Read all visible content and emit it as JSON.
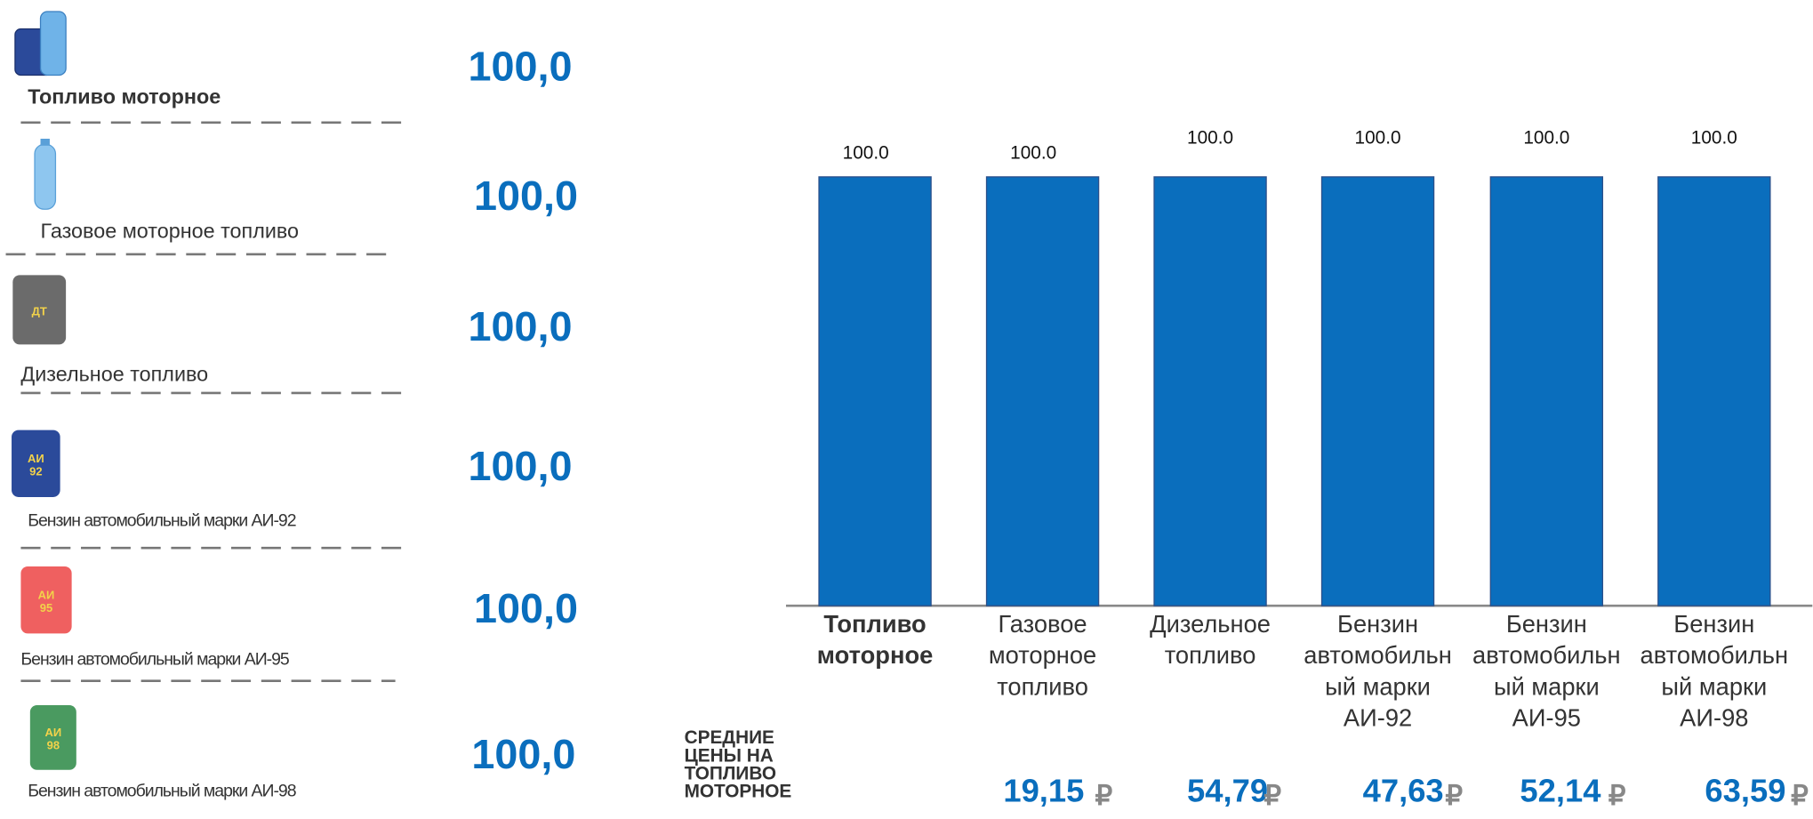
{
  "fuel_list": [
    {
      "label": "Топливо моторное",
      "value": "100,0"
    },
    {
      "label": "Газовое моторное топливо",
      "value": "100,0"
    },
    {
      "label": "Дизельное топливо",
      "value": "100,0",
      "icon_text": [
        "ДТ"
      ]
    },
    {
      "label": "Бензин автомобильный марки АИ-92",
      "value": "100,0",
      "icon_text": [
        "АИ",
        "92"
      ]
    },
    {
      "label": "Бензин автомобильный марки АИ-95",
      "value": "100,0",
      "icon_text": [
        "АИ",
        "95"
      ]
    },
    {
      "label": "Бензин автомобильный марки АИ-98",
      "value": "100,0",
      "icon_text": [
        "АИ",
        "98"
      ]
    }
  ],
  "chart_data": {
    "type": "bar",
    "categories": [
      "Топливо моторное",
      "Газовое моторное топливо",
      "Дизельное топливо",
      "Бензин автомобильный марки АИ-92",
      "Бензин автомобильный марки АИ-95",
      "Бензин автомобильный марки АИ-98"
    ],
    "values": [
      100,
      100,
      100,
      100,
      100,
      100
    ],
    "value_labels": [
      "100.0",
      "100.0",
      "100.0",
      "100.0",
      "100.0",
      "100.0"
    ],
    "color": "#0a6ebd",
    "ylim": [
      0,
      100
    ]
  },
  "prices": {
    "title": [
      "СРЕДНИЕ",
      "ЦЕНЫ НА",
      "ТОПЛИВО",
      "МОТОРНОЕ"
    ],
    "currency": "₽",
    "values": [
      "19,15",
      "54,79",
      "47,63",
      "52,14",
      "63,59"
    ]
  }
}
